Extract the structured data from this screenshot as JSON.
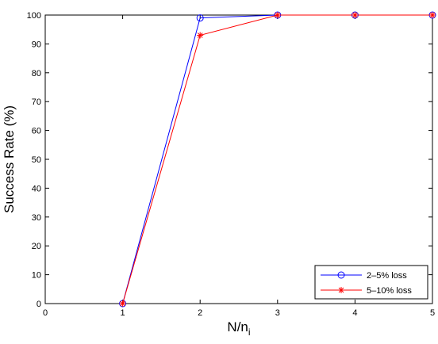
{
  "chart_data": {
    "type": "line",
    "title": "",
    "xlabel_main": "N/n",
    "xlabel_sub": "i",
    "ylabel": "Success Rate (%)",
    "xlim": [
      0,
      5
    ],
    "ylim": [
      0,
      100
    ],
    "xticks": [
      "0",
      "1",
      "2",
      "3",
      "4",
      "5"
    ],
    "yticks": [
      "0",
      "10",
      "20",
      "30",
      "40",
      "50",
      "60",
      "70",
      "80",
      "90",
      "100"
    ],
    "grid": false,
    "legend_position": "bottom-right",
    "x": [
      1,
      2,
      3,
      4,
      5
    ],
    "series": [
      {
        "name": "2–5% loss",
        "color": "#0000ff",
        "marker": "circle",
        "values": [
          0,
          99,
          100,
          100,
          100
        ]
      },
      {
        "name": "5–10% loss",
        "color": "#ff0000",
        "marker": "asterisk",
        "values": [
          0,
          93,
          100,
          100,
          100
        ]
      }
    ]
  }
}
